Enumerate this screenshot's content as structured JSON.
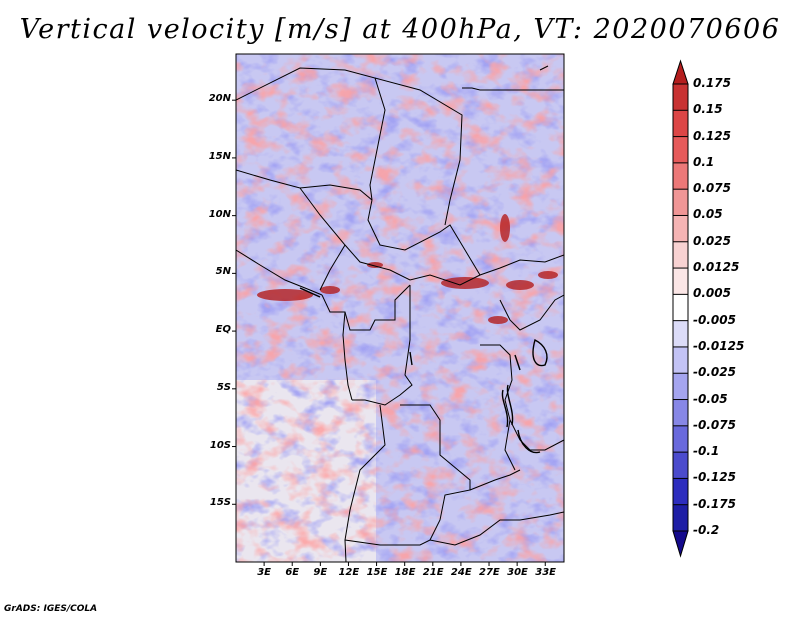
{
  "title": "Vertical velocity [m/s] at 400hPa, VT: 2020070606",
  "credit": "GrADS: IGES/COLA",
  "map": {
    "variable": "Vertical velocity",
    "level": "400hPa",
    "units": "m/s",
    "valid_time": "2020070606",
    "lon_range_deg": [
      0,
      35
    ],
    "lat_range_deg": [
      -20,
      24
    ],
    "lat_labels": [
      "20N",
      "15N",
      "10N",
      "5N",
      "EQ",
      "5S",
      "10S",
      "15S"
    ],
    "lat_values": [
      20,
      15,
      10,
      5,
      0,
      -5,
      -10,
      -15
    ],
    "lon_labels": [
      "3E",
      "6E",
      "9E",
      "12E",
      "15E",
      "18E",
      "21E",
      "24E",
      "27E",
      "30E",
      "33E"
    ],
    "lon_values": [
      3,
      6,
      9,
      12,
      15,
      18,
      21,
      24,
      27,
      30,
      33
    ]
  },
  "colorbar": {
    "labels": [
      "0.175",
      "0.15",
      "0.125",
      "0.1",
      "0.075",
      "0.05",
      "0.025",
      "0.0125",
      "0.005",
      "-0.005",
      "-0.0125",
      "-0.025",
      "-0.05",
      "-0.075",
      "-0.1",
      "-0.125",
      "-0.175",
      "-0.2"
    ],
    "colors": [
      "#b41e1e",
      "#c83232",
      "#dc4646",
      "#e65a5a",
      "#ec7878",
      "#f09696",
      "#f5b4b4",
      "#f8d2d2",
      "#fbe6e6",
      "#ffffff",
      "#dcdcf8",
      "#c3c3f5",
      "#a5a5ef",
      "#8787e6",
      "#6969dc",
      "#4b4bcd",
      "#2d2dbe",
      "#1e1ea5",
      "#140a8c"
    ]
  },
  "colors": {
    "positive": "#e64646",
    "negative": "#4646d2",
    "border": "#000000"
  }
}
